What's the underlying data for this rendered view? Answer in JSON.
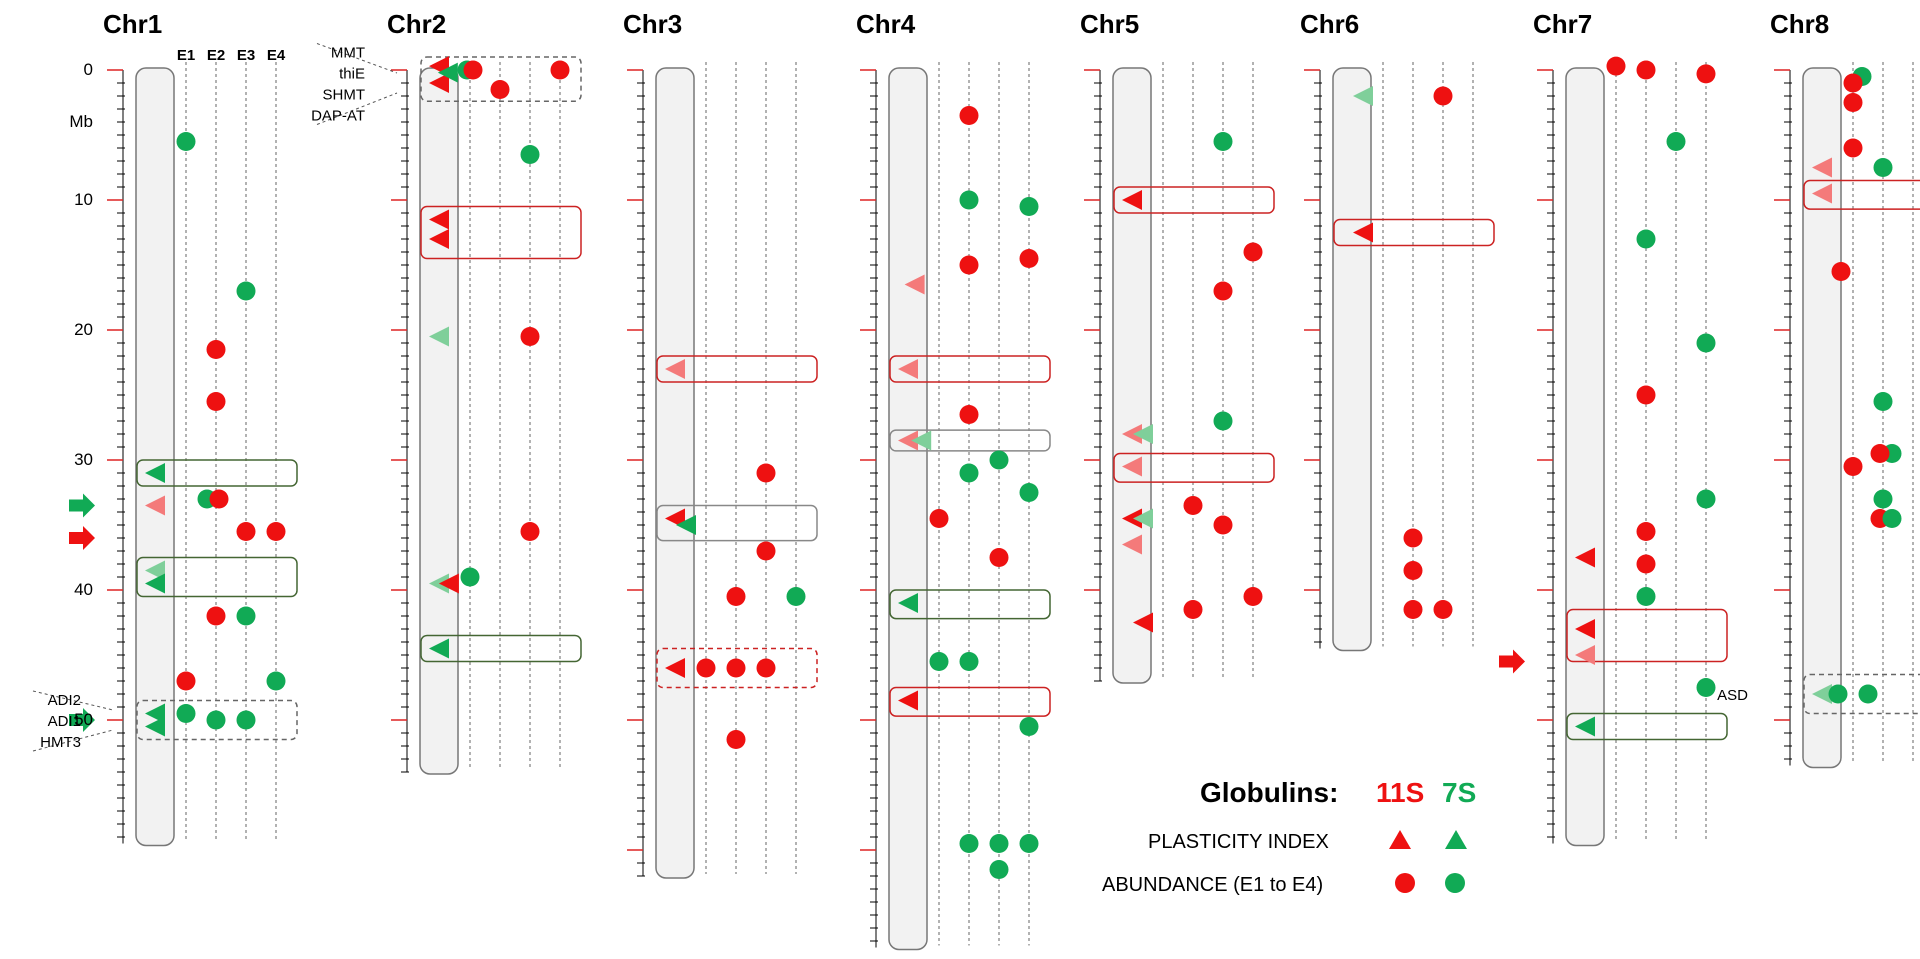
{
  "colors": {
    "red": "#ee1111",
    "green": "#11aa55",
    "light_red": "#f47a7a",
    "light_green": "#7fcf9a",
    "box_red": "#cc2222",
    "box_green": "#446633",
    "box_gray": "#888888",
    "box_dashed": "#666666"
  },
  "axis": {
    "unit_label": "Mb",
    "tick_labels": [
      "0",
      "10",
      "20",
      "30",
      "40",
      "50"
    ],
    "env_labels": [
      "E1",
      "E2",
      "E3",
      "E4"
    ]
  },
  "legend": {
    "title": "Globulins:",
    "s11": "11S",
    "s7": "7S",
    "plasticity_label": "PLASTICITY INDEX",
    "abundance_label": "ABUNDANCE (E1 to E4)"
  },
  "chromosomes": [
    {
      "name": "Chr1",
      "length_mb": 59.5,
      "markers": [
        {
          "t": "dot",
          "c": "g",
          "lane": 1,
          "mb": 5.5
        },
        {
          "t": "dot",
          "c": "g",
          "lane": 3,
          "mb": 17
        },
        {
          "t": "dot",
          "c": "r",
          "lane": 2,
          "mb": 21.5
        },
        {
          "t": "dot",
          "c": "r",
          "lane": 2,
          "mb": 25.5
        },
        {
          "t": "tri",
          "c": "g",
          "mb": 31
        },
        {
          "t": "tri",
          "c": "lr",
          "mb": 33.5
        },
        {
          "t": "dot",
          "c": "g",
          "lane": 1.7,
          "mb": 33
        },
        {
          "t": "dot",
          "c": "r",
          "lane": 2.1,
          "mb": 33
        },
        {
          "t": "dot",
          "c": "r",
          "lane": 3,
          "mb": 35.5
        },
        {
          "t": "dot",
          "c": "r",
          "lane": 4,
          "mb": 35.5
        },
        {
          "t": "tri",
          "c": "lg",
          "mb": 38.5
        },
        {
          "t": "tri",
          "c": "g",
          "mb": 39.5
        },
        {
          "t": "dot",
          "c": "r",
          "lane": 2,
          "mb": 42
        },
        {
          "t": "dot",
          "c": "g",
          "lane": 3,
          "mb": 42
        },
        {
          "t": "dot",
          "c": "r",
          "lane": 1,
          "mb": 47
        },
        {
          "t": "dot",
          "c": "g",
          "lane": 4,
          "mb": 47
        },
        {
          "t": "tri",
          "c": "g",
          "mb": 49.5
        },
        {
          "t": "tri",
          "c": "g",
          "mb": 50.5
        },
        {
          "t": "dot",
          "c": "g",
          "lane": 1,
          "mb": 49.5
        },
        {
          "t": "dot",
          "c": "g",
          "lane": 2,
          "mb": 50
        },
        {
          "t": "dot",
          "c": "g",
          "lane": 3,
          "mb": 50
        }
      ],
      "boxes": [
        {
          "from": 30,
          "to": 32,
          "style": "green"
        },
        {
          "from": 37.5,
          "to": 40.5,
          "style": "green"
        },
        {
          "from": 48.5,
          "to": 51.5,
          "style": "dashed"
        }
      ],
      "arrows": [
        {
          "c": "g",
          "mb": 33.5
        },
        {
          "c": "r",
          "mb": 36
        },
        {
          "c": "g",
          "mb": 50
        }
      ],
      "gene_labels": [
        {
          "side": "left",
          "items": [
            "ADI2",
            "ADI1",
            "HMT3"
          ],
          "mb": 50
        }
      ]
    },
    {
      "name": "Chr2",
      "length_mb": 54,
      "markers": [
        {
          "t": "tri",
          "c": "r",
          "mb": -0.3
        },
        {
          "t": "tri",
          "c": "r",
          "mb": 1
        },
        {
          "t": "tri",
          "c": "g",
          "lane": 0.4,
          "mb": 0.2
        },
        {
          "t": "dot",
          "c": "g",
          "lane": 0.9,
          "mb": 0
        },
        {
          "t": "dot",
          "c": "r",
          "lane": 1.1,
          "mb": 0
        },
        {
          "t": "dot",
          "c": "r",
          "lane": 2,
          "mb": 1.5
        },
        {
          "t": "dot",
          "c": "r",
          "lane": 4,
          "mb": 0
        },
        {
          "t": "dot",
          "c": "g",
          "lane": 3,
          "mb": 6.5
        },
        {
          "t": "tri",
          "c": "r",
          "mb": 11.5
        },
        {
          "t": "tri",
          "c": "r",
          "mb": 13
        },
        {
          "t": "tri",
          "c": "lg",
          "mb": 20.5
        },
        {
          "t": "dot",
          "c": "r",
          "lane": 3,
          "mb": 20.5
        },
        {
          "t": "dot",
          "c": "r",
          "lane": 3,
          "mb": 35.5
        },
        {
          "t": "tri",
          "c": "lg",
          "mb": 39.5
        },
        {
          "t": "tri",
          "c": "r",
          "lane": 0.45,
          "mb": 39.5
        },
        {
          "t": "dot",
          "c": "g",
          "lane": 1,
          "mb": 39
        },
        {
          "t": "tri",
          "c": "g",
          "mb": 44.5
        }
      ],
      "boxes": [
        {
          "from": -1,
          "to": 2.4,
          "style": "dashed"
        },
        {
          "from": 10.5,
          "to": 14.5,
          "style": "red"
        },
        {
          "from": 43.5,
          "to": 45.5,
          "style": "green"
        }
      ],
      "arrows": [],
      "gene_labels": [
        {
          "side": "left",
          "items": [
            "MMT",
            "thiE",
            "SHMT",
            "DAP-AT"
          ],
          "mb": 1
        }
      ]
    },
    {
      "name": "Chr3",
      "length_mb": 62,
      "markers": [
        {
          "t": "tri",
          "c": "lr",
          "mb": 23
        },
        {
          "t": "dot",
          "c": "r",
          "lane": 3,
          "mb": 31
        },
        {
          "t": "tri",
          "c": "r",
          "mb": 34.5
        },
        {
          "t": "tri",
          "c": "g",
          "lane": 0.5,
          "mb": 35
        },
        {
          "t": "dot",
          "c": "r",
          "lane": 3,
          "mb": 37
        },
        {
          "t": "dot",
          "c": "r",
          "lane": 2,
          "mb": 40.5
        },
        {
          "t": "dot",
          "c": "g",
          "lane": 4,
          "mb": 40.5
        },
        {
          "t": "tri",
          "c": "r",
          "mb": 46
        },
        {
          "t": "dot",
          "c": "r",
          "lane": 1,
          "mb": 46
        },
        {
          "t": "dot",
          "c": "r",
          "lane": 2,
          "mb": 46
        },
        {
          "t": "dot",
          "c": "r",
          "lane": 3,
          "mb": 46
        },
        {
          "t": "dot",
          "c": "r",
          "lane": 2,
          "mb": 51.5
        }
      ],
      "boxes": [
        {
          "from": 22,
          "to": 24,
          "style": "red"
        },
        {
          "from": 33.5,
          "to": 36.2,
          "style": "gray"
        },
        {
          "from": 44.5,
          "to": 47.5,
          "style": "dashed-red"
        }
      ],
      "arrows": [],
      "gene_labels": []
    },
    {
      "name": "Chr4",
      "length_mb": 67.5,
      "markers": [
        {
          "t": "dot",
          "c": "r",
          "lane": 2,
          "mb": 3.5
        },
        {
          "t": "dot",
          "c": "g",
          "lane": 2,
          "mb": 10
        },
        {
          "t": "dot",
          "c": "g",
          "lane": 4,
          "mb": 10.5
        },
        {
          "t": "dot",
          "c": "r",
          "lane": 2,
          "mb": 15
        },
        {
          "t": "dot",
          "c": "r",
          "lane": 4,
          "mb": 14.5
        },
        {
          "t": "tri",
          "c": "lr",
          "lane": 0.3,
          "mb": 16.5
        },
        {
          "t": "tri",
          "c": "lr",
          "mb": 23
        },
        {
          "t": "dot",
          "c": "r",
          "lane": 2,
          "mb": 26.5
        },
        {
          "t": "tri",
          "c": "lr",
          "mb": 28.5
        },
        {
          "t": "tri",
          "c": "lg",
          "lane": 0.6,
          "mb": 28.5
        },
        {
          "t": "dot",
          "c": "g",
          "lane": 2,
          "mb": 31
        },
        {
          "t": "dot",
          "c": "g",
          "lane": 3,
          "mb": 30
        },
        {
          "t": "dot",
          "c": "g",
          "lane": 4,
          "mb": 32.5
        },
        {
          "t": "dot",
          "c": "r",
          "lane": 1,
          "mb": 34.5
        },
        {
          "t": "dot",
          "c": "r",
          "lane": 3,
          "mb": 37.5
        },
        {
          "t": "tri",
          "c": "g",
          "mb": 41
        },
        {
          "t": "dot",
          "c": "g",
          "lane": 1,
          "mb": 45.5
        },
        {
          "t": "dot",
          "c": "g",
          "lane": 2,
          "mb": 45.5
        },
        {
          "t": "tri",
          "c": "r",
          "mb": 48.5
        },
        {
          "t": "dot",
          "c": "g",
          "lane": 4,
          "mb": 50.5
        },
        {
          "t": "dot",
          "c": "g",
          "lane": 2,
          "mb": 59.5
        },
        {
          "t": "dot",
          "c": "g",
          "lane": 3,
          "mb": 59.5
        },
        {
          "t": "dot",
          "c": "g",
          "lane": 4,
          "mb": 59.5
        },
        {
          "t": "dot",
          "c": "g",
          "lane": 3,
          "mb": 61.5
        }
      ],
      "boxes": [
        {
          "from": 22,
          "to": 24,
          "style": "red"
        },
        {
          "from": 27.7,
          "to": 29.3,
          "style": "gray"
        },
        {
          "from": 40,
          "to": 42.2,
          "style": "green"
        },
        {
          "from": 47.5,
          "to": 49.7,
          "style": "red"
        }
      ],
      "arrows": [],
      "gene_labels": []
    },
    {
      "name": "Chr5",
      "length_mb": 47,
      "markers": [
        {
          "t": "dot",
          "c": "g",
          "lane": 3,
          "mb": 5.5
        },
        {
          "t": "tri",
          "c": "r",
          "mb": 10
        },
        {
          "t": "dot",
          "c": "r",
          "lane": 4,
          "mb": 14
        },
        {
          "t": "dot",
          "c": "r",
          "lane": 3,
          "mb": 17
        },
        {
          "t": "dot",
          "c": "g",
          "lane": 3,
          "mb": 27
        },
        {
          "t": "tri",
          "c": "lr",
          "mb": 28
        },
        {
          "t": "tri",
          "c": "lg",
          "lane": 0.5,
          "mb": 28
        },
        {
          "t": "tri",
          "c": "lr",
          "mb": 30.5
        },
        {
          "t": "dot",
          "c": "r",
          "lane": 2,
          "mb": 33.5
        },
        {
          "t": "tri",
          "c": "r",
          "mb": 34.5
        },
        {
          "t": "tri",
          "c": "lg",
          "lane": 0.5,
          "mb": 34.5
        },
        {
          "t": "dot",
          "c": "r",
          "lane": 3,
          "mb": 35
        },
        {
          "t": "tri",
          "c": "lr",
          "mb": 36.5
        },
        {
          "t": "dot",
          "c": "r",
          "lane": 2,
          "mb": 41.5
        },
        {
          "t": "dot",
          "c": "r",
          "lane": 4,
          "mb": 40.5
        },
        {
          "t": "tri",
          "c": "r",
          "lane": 0.5,
          "mb": 42.5
        }
      ],
      "boxes": [
        {
          "from": 9,
          "to": 11,
          "style": "red"
        },
        {
          "from": 29.5,
          "to": 31.7,
          "style": "red"
        }
      ],
      "arrows": [],
      "gene_labels": []
    },
    {
      "name": "Chr6",
      "length_mb": 44.5,
      "markers": [
        {
          "t": "tri",
          "c": "lg",
          "lane": 0.5,
          "mb": 2
        },
        {
          "t": "dot",
          "c": "r",
          "lane": 3,
          "mb": 2
        },
        {
          "t": "tri",
          "c": "r",
          "lane": 0.5,
          "mb": 12.5
        },
        {
          "t": "dot",
          "c": "r",
          "lane": 2,
          "mb": 36
        },
        {
          "t": "dot",
          "c": "r",
          "lane": 2,
          "mb": 38.5
        },
        {
          "t": "dot",
          "c": "r",
          "lane": 2,
          "mb": 41.5
        },
        {
          "t": "dot",
          "c": "r",
          "lane": 3,
          "mb": 41.5
        }
      ],
      "boxes": [
        {
          "from": 11.5,
          "to": 13.5,
          "style": "red"
        }
      ],
      "arrows": [],
      "gene_labels": []
    },
    {
      "name": "Chr7",
      "length_mb": 59.5,
      "markers": [
        {
          "t": "dot",
          "c": "r",
          "lane": 1,
          "mb": -0.3
        },
        {
          "t": "dot",
          "c": "r",
          "lane": 2,
          "mb": 0
        },
        {
          "t": "dot",
          "c": "r",
          "lane": 4,
          "mb": 0.3
        },
        {
          "t": "dot",
          "c": "g",
          "lane": 3,
          "mb": 5.5
        },
        {
          "t": "dot",
          "c": "g",
          "lane": 2,
          "mb": 13
        },
        {
          "t": "dot",
          "c": "g",
          "lane": 4,
          "mb": 21
        },
        {
          "t": "dot",
          "c": "r",
          "lane": 2,
          "mb": 25
        },
        {
          "t": "dot",
          "c": "g",
          "lane": 4,
          "mb": 33
        },
        {
          "t": "dot",
          "c": "r",
          "lane": 2,
          "mb": 35.5
        },
        {
          "t": "tri",
          "c": "r",
          "mb": 37.5
        },
        {
          "t": "dot",
          "c": "r",
          "lane": 2,
          "mb": 38
        },
        {
          "t": "dot",
          "c": "g",
          "lane": 2,
          "mb": 40.5
        },
        {
          "t": "tri",
          "c": "r",
          "mb": 43
        },
        {
          "t": "tri",
          "c": "lr",
          "mb": 45
        },
        {
          "t": "dot",
          "c": "g",
          "lane": 4,
          "mb": 47.5
        },
        {
          "t": "tri",
          "c": "g",
          "mb": 50.5
        }
      ],
      "boxes": [
        {
          "from": 41.5,
          "to": 45.5,
          "style": "red"
        },
        {
          "from": 49.5,
          "to": 51.5,
          "style": "green"
        }
      ],
      "arrows": [
        {
          "c": "r",
          "mb": 45.5
        }
      ],
      "gene_labels": []
    },
    {
      "name": "Chr8",
      "length_mb": 53.5,
      "markers": [
        {
          "t": "dot",
          "c": "g",
          "lane": 1.3,
          "mb": 0.5
        },
        {
          "t": "dot",
          "c": "r",
          "lane": 1,
          "mb": 1
        },
        {
          "t": "dot",
          "c": "r",
          "lane": 1,
          "mb": 2.5
        },
        {
          "t": "dot",
          "c": "r",
          "lane": 1,
          "mb": 6
        },
        {
          "t": "tri",
          "c": "lr",
          "mb": 7.5
        },
        {
          "t": "dot",
          "c": "g",
          "lane": 2,
          "mb": 7.5
        },
        {
          "t": "tri",
          "c": "lr",
          "mb": 9.5
        },
        {
          "t": "dot",
          "c": "r",
          "lane": 0.6,
          "mb": 15.5
        },
        {
          "t": "dot",
          "c": "g",
          "lane": 2,
          "mb": 25.5
        },
        {
          "t": "dot",
          "c": "r",
          "lane": 1,
          "mb": 30.5
        },
        {
          "t": "dot",
          "c": "g",
          "lane": 2.3,
          "mb": 29.5
        },
        {
          "t": "dot",
          "c": "r",
          "lane": 1.9,
          "mb": 29.5
        },
        {
          "t": "dot",
          "c": "g",
          "lane": 2,
          "mb": 33
        },
        {
          "t": "dot",
          "c": "r",
          "lane": 1.9,
          "mb": 34.5
        },
        {
          "t": "dot",
          "c": "g",
          "lane": 2.3,
          "mb": 34.5
        },
        {
          "t": "tri",
          "c": "lg",
          "mb": 48
        },
        {
          "t": "dot",
          "c": "g",
          "lane": 0.5,
          "mb": 48
        },
        {
          "t": "dot",
          "c": "g",
          "lane": 1.5,
          "mb": 48
        }
      ],
      "boxes": [
        {
          "from": 8.5,
          "to": 10.7,
          "style": "red"
        },
        {
          "from": 46.5,
          "to": 49.5,
          "style": "dashed"
        }
      ],
      "arrows": [],
      "gene_labels": [
        {
          "side": "left",
          "items": [
            "ASD"
          ],
          "mb": 48
        }
      ]
    }
  ]
}
